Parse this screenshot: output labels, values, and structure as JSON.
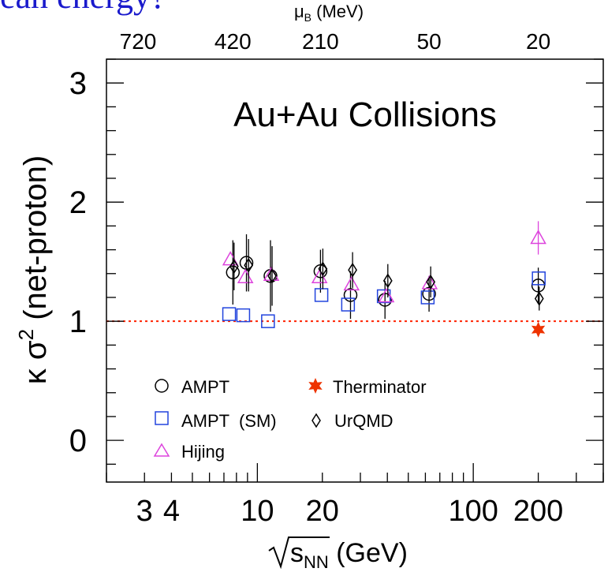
{
  "page": {
    "cutoff_heading": "ean energy?"
  },
  "chart_data": {
    "type": "scatter",
    "title": "Au+Au Collisions",
    "xlabel": "√sNN (GeV)",
    "xlabel_main": "s",
    "xlabel_sub": "NN",
    "xlabel_unit": " (GeV)",
    "ylabel": "κ σ² (net-proton)",
    "ylabel_main": "κ σ",
    "ylabel_sup": "2",
    "ylabel_rest": " (net-proton)",
    "top_axis_label": "μB (MeV)",
    "top_axis_label_main": "μ",
    "top_axis_label_sub": "B",
    "top_axis_label_unit": " (MeV)",
    "x_scale": "log",
    "xlim": [
      2.0,
      400
    ],
    "ylim": [
      -0.35,
      3.2
    ],
    "x_ticks": [
      {
        "value": 3,
        "label": "3"
      },
      {
        "value": 4,
        "label": "4"
      },
      {
        "value": 10,
        "label": "10"
      },
      {
        "value": 20,
        "label": "20"
      },
      {
        "value": 100,
        "label": "100"
      },
      {
        "value": 200,
        "label": "200"
      }
    ],
    "y_ticks": [
      {
        "value": 0,
        "label": "0"
      },
      {
        "value": 1,
        "label": "1"
      },
      {
        "value": 2,
        "label": "2"
      },
      {
        "value": 3,
        "label": "3"
      }
    ],
    "top_ticks": [
      {
        "value": 2.8,
        "label": "720"
      },
      {
        "value": 7.7,
        "label": "420"
      },
      {
        "value": 19.6,
        "label": "210"
      },
      {
        "value": 62.4,
        "label": "50"
      },
      {
        "value": 200,
        "label": "20"
      }
    ],
    "reference_line": {
      "y": 1.0,
      "color": "#ff2200",
      "style": "dotted"
    },
    "legend_placement": "bottom-left",
    "series": [
      {
        "name": "AMPT",
        "marker": "circle",
        "color": "#000000",
        "points": [
          {
            "x": 7.7,
            "y": 1.41,
            "err": 0.27
          },
          {
            "x": 8.9,
            "y": 1.49,
            "err": 0.24
          },
          {
            "x": 11.5,
            "y": 1.38,
            "err": 0.3
          },
          {
            "x": 19.6,
            "y": 1.42,
            "err": 0.18
          },
          {
            "x": 27,
            "y": 1.22,
            "err": 0.2
          },
          {
            "x": 39,
            "y": 1.18,
            "err": 0.16
          },
          {
            "x": 62.4,
            "y": 1.23,
            "err": 0.15
          },
          {
            "x": 200,
            "y": 1.3,
            "err": 0.15
          }
        ]
      },
      {
        "name": "AMPT  (SM)",
        "marker": "square",
        "color": "#2244dd",
        "points": [
          {
            "x": 7.4,
            "y": 1.06,
            "err": 0
          },
          {
            "x": 8.6,
            "y": 1.05,
            "err": 0
          },
          {
            "x": 11.2,
            "y": 1.0,
            "err": 0
          },
          {
            "x": 19.8,
            "y": 1.22,
            "err": 0
          },
          {
            "x": 26.3,
            "y": 1.14,
            "err": 0
          },
          {
            "x": 38.5,
            "y": 1.21,
            "err": 0
          },
          {
            "x": 61.5,
            "y": 1.2,
            "err": 0
          },
          {
            "x": 201,
            "y": 1.36,
            "err": 0
          }
        ]
      },
      {
        "name": "Hijing",
        "marker": "triangle",
        "color": "#dd44dd",
        "points": [
          {
            "x": 7.5,
            "y": 1.52,
            "err": 0
          },
          {
            "x": 8.8,
            "y": 1.37,
            "err": 0
          },
          {
            "x": 11.6,
            "y": 1.39,
            "err": 0
          },
          {
            "x": 19.4,
            "y": 1.37,
            "err": 0
          },
          {
            "x": 27.3,
            "y": 1.31,
            "err": 0
          },
          {
            "x": 39.6,
            "y": 1.21,
            "err": 0
          },
          {
            "x": 62.8,
            "y": 1.32,
            "err": 0
          },
          {
            "x": 200,
            "y": 1.7,
            "err": 0.14
          }
        ]
      },
      {
        "name": "UrQMD",
        "marker": "diamond",
        "color": "#000000",
        "points": [
          {
            "x": 7.8,
            "y": 1.46,
            "err": 0.2
          },
          {
            "x": 9.1,
            "y": 1.47,
            "err": 0.22
          },
          {
            "x": 11.7,
            "y": 1.38,
            "err": 0.25
          },
          {
            "x": 20.1,
            "y": 1.44,
            "err": 0.17
          },
          {
            "x": 27.6,
            "y": 1.43,
            "err": 0.15
          },
          {
            "x": 40.2,
            "y": 1.34,
            "err": 0.14
          },
          {
            "x": 63.5,
            "y": 1.33,
            "err": 0.13
          },
          {
            "x": 202,
            "y": 1.19,
            "err": 0.1
          }
        ]
      },
      {
        "name": "Therminator",
        "marker": "star",
        "color": "#ee3300",
        "points": [
          {
            "x": 200,
            "y": 0.93,
            "err": 0
          }
        ]
      }
    ]
  }
}
